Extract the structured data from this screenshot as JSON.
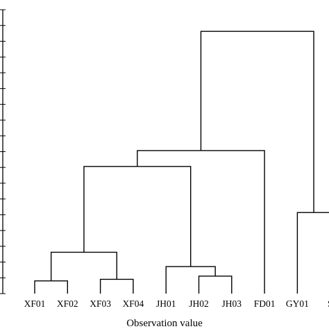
{
  "chart_data": {
    "type": "dendrogram",
    "xlabel": "Observation value",
    "leaves": [
      "XF01",
      "XF02",
      "XF03",
      "XF04",
      "JH01",
      "JH02",
      "JH03",
      "FD01",
      "GY01",
      "S"
    ],
    "y_ticks_count": 18,
    "merges": [
      {
        "left": "XF01",
        "right": "XF02",
        "height": 0.8
      },
      {
        "left": "XF03",
        "right": "XF04",
        "height": 0.9
      },
      {
        "left": "JH02",
        "right": "JH03",
        "height": 1.1
      },
      {
        "left": "JH01",
        "right": "JH02+JH03",
        "height": 1.7
      },
      {
        "left": "XF01+XF02",
        "right": "XF03+XF04",
        "height": 2.6
      },
      {
        "left": "XF cluster",
        "right": "JH cluster",
        "height": 8.0
      },
      {
        "left": "XF+JH",
        "right": "FD01",
        "height": 9.0
      },
      {
        "left": "GY01",
        "right": "S",
        "height": 5.1
      },
      {
        "left": "XF+JH+FD01",
        "right": "GY01+S",
        "height": 16.5
      }
    ],
    "grid": false
  }
}
